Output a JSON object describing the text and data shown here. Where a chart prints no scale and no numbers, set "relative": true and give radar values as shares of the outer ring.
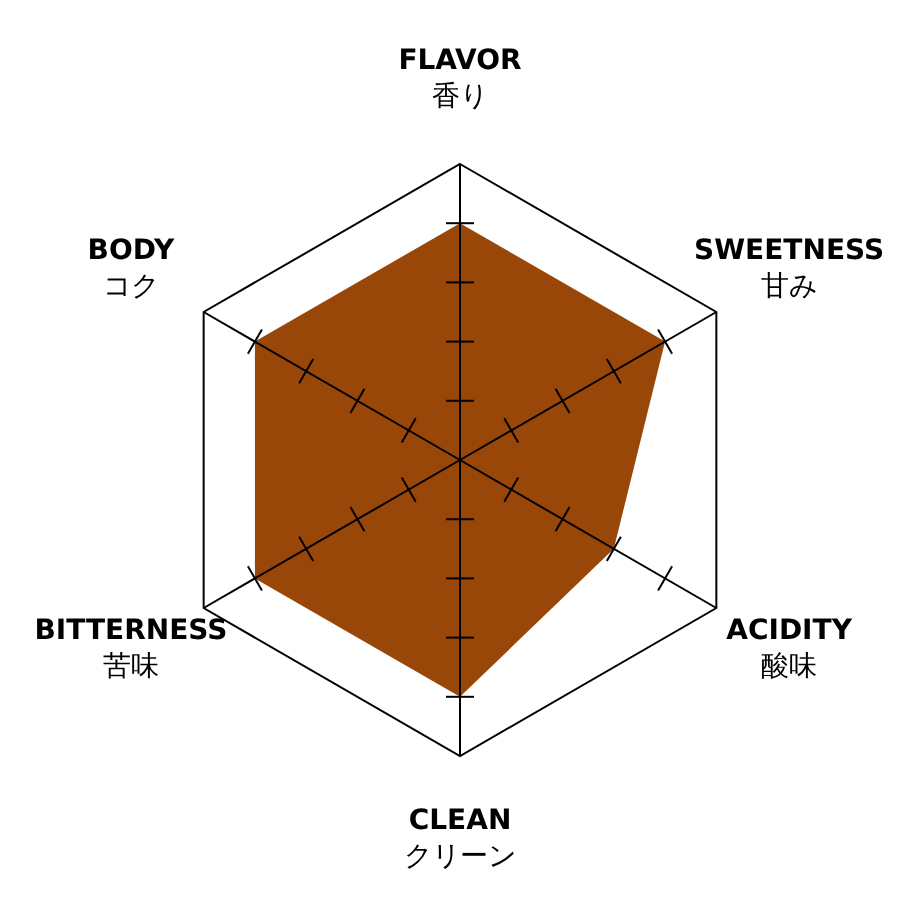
{
  "chart_data": {
    "type": "radar",
    "relative": true,
    "categories": [
      "FLAVOR\n香り",
      "SWEETNESS\n甘み",
      "ACIDITY\n酸味",
      "CLEAN\nクリーン",
      "BITTERNESS\n苦味",
      "BODY\nコク"
    ],
    "series": [
      {
        "color": "#994709",
        "values": [
          0.8,
          0.8,
          0.6,
          0.8,
          0.8,
          0.8
        ]
      }
    ],
    "legend": false
  }
}
